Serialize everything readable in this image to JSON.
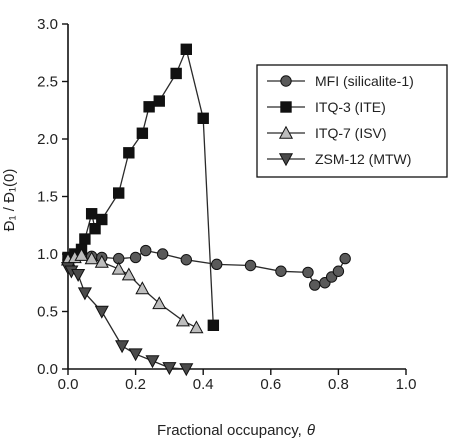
{
  "chart_data": {
    "type": "line",
    "xlabel": "Fractional occupancy,",
    "xlabel_symbol": "θ",
    "ylabel": "Đ₁ / Đ₁(0)",
    "xlim": [
      0.0,
      1.0
    ],
    "ylim": [
      0.0,
      3.0
    ],
    "xticks": [
      "0.0",
      "0.2",
      "0.4",
      "0.6",
      "0.8",
      "1.0"
    ],
    "yticks": [
      "0.0",
      "0.5",
      "1.0",
      "1.5",
      "2.0",
      "2.5",
      "3.0"
    ],
    "grid": false,
    "legend_position": "top-right",
    "series": [
      {
        "name": "MFI (silicalite-1)",
        "marker": "circle",
        "fill": "#5a5a5a",
        "x": [
          0.0,
          0.02,
          0.04,
          0.07,
          0.1,
          0.15,
          0.2,
          0.23,
          0.28,
          0.35,
          0.44,
          0.54,
          0.63,
          0.71,
          0.73,
          0.76,
          0.78,
          0.8,
          0.82
        ],
        "y": [
          0.95,
          0.97,
          1.0,
          0.98,
          0.97,
          0.96,
          0.97,
          1.03,
          1.0,
          0.95,
          0.91,
          0.9,
          0.85,
          0.84,
          0.73,
          0.75,
          0.8,
          0.85,
          0.96
        ]
      },
      {
        "name": "ITQ-3 (ITE)",
        "marker": "square",
        "fill": "#111111",
        "x": [
          0.0,
          0.02,
          0.04,
          0.05,
          0.07,
          0.08,
          0.1,
          0.15,
          0.18,
          0.22,
          0.24,
          0.27,
          0.32,
          0.35,
          0.4,
          0.43
        ],
        "y": [
          0.97,
          1.0,
          1.04,
          1.13,
          1.35,
          1.22,
          1.3,
          1.53,
          1.88,
          2.05,
          2.28,
          2.33,
          2.57,
          2.78,
          2.18,
          0.38
        ]
      },
      {
        "name": "ITQ-7 (ISV)",
        "marker": "triangle-up",
        "fill": "#bdbdbd",
        "x": [
          0.0,
          0.02,
          0.04,
          0.07,
          0.1,
          0.15,
          0.18,
          0.22,
          0.27,
          0.34,
          0.38
        ],
        "y": [
          0.95,
          0.97,
          0.99,
          0.96,
          0.93,
          0.87,
          0.82,
          0.7,
          0.57,
          0.42,
          0.36
        ]
      },
      {
        "name": "ZSM-12 (MTW)",
        "marker": "triangle-down",
        "fill": "#4a4a4a",
        "x": [
          0.0,
          0.01,
          0.03,
          0.05,
          0.1,
          0.16,
          0.2,
          0.25,
          0.3,
          0.35
        ],
        "y": [
          0.88,
          0.85,
          0.82,
          0.66,
          0.5,
          0.2,
          0.13,
          0.07,
          0.01,
          0.0
        ]
      }
    ]
  }
}
